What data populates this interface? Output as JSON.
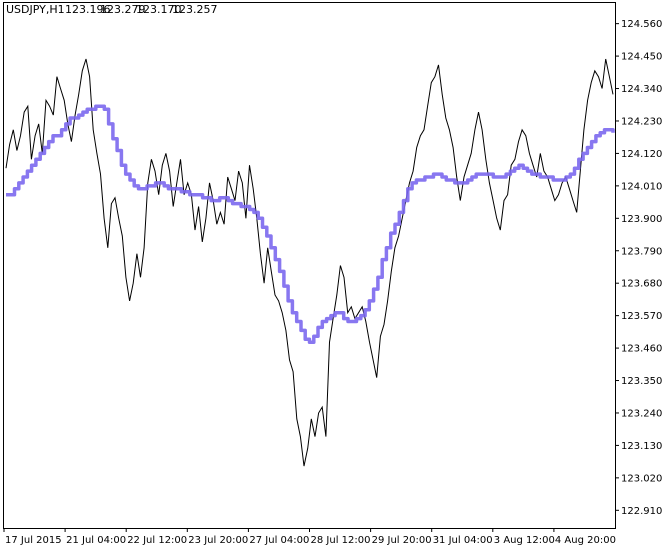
{
  "header": {
    "symbol": "USDJPY,H1",
    "open": "123.196",
    "high": "123.279",
    "low": "123.170",
    "close": "123.257"
  },
  "chart_data": {
    "type": "line",
    "xlabel": "",
    "ylabel": "",
    "ylim": [
      122.85,
      124.63
    ],
    "y_ticks": [
      124.56,
      124.45,
      124.34,
      124.23,
      124.12,
      124.01,
      123.9,
      123.79,
      123.68,
      123.57,
      123.46,
      123.35,
      123.24,
      123.13,
      123.02,
      122.91
    ],
    "y_tick_labels": [
      "124.560",
      "124.450",
      "124.340",
      "124.230",
      "124.120",
      "124.010",
      "123.900",
      "123.790",
      "123.680",
      "123.570",
      "123.460",
      "123.350",
      "123.240",
      "123.130",
      "123.020",
      "122.910"
    ],
    "x_ticks": [
      "17 Jul 2015",
      "21 Jul 04:00",
      "22 Jul 12:00",
      "23 Jul 20:00",
      "27 Jul 04:00",
      "28 Jul 12:00",
      "29 Jul 20:00",
      "31 Jul 04:00",
      "3 Aug 12:00",
      "4 Aug 20:00"
    ],
    "grid": false,
    "series": [
      {
        "values": [
          124.07,
          124.15,
          124.2,
          124.13,
          124.18,
          124.26,
          124.28,
          124.1,
          124.18,
          124.22,
          124.12,
          124.3,
          124.28,
          124.25,
          124.38,
          124.34,
          124.3,
          124.22,
          124.16,
          124.25,
          124.32,
          124.4,
          124.44,
          124.38,
          124.2,
          124.12,
          124.05,
          123.9,
          123.8,
          123.95,
          123.97,
          123.9,
          123.84,
          123.7,
          123.62,
          123.68,
          123.78,
          123.7,
          123.8,
          124.02,
          124.1,
          124.06,
          123.98,
          124.08,
          124.12,
          124.06,
          123.94,
          124.02,
          124.1,
          123.98,
          124.02,
          123.98,
          123.86,
          123.94,
          123.82,
          123.9,
          124.02,
          123.96,
          123.88,
          123.92,
          123.88,
          124.04,
          124.0,
          123.96,
          124.06,
          124.02,
          123.9,
          124.08,
          124.0,
          123.9,
          123.78,
          123.68,
          123.8,
          123.72,
          123.64,
          123.62,
          123.58,
          123.52,
          123.42,
          123.38,
          123.22,
          123.16,
          123.06,
          123.12,
          123.22,
          123.16,
          123.24,
          123.26,
          123.16,
          123.48,
          123.56,
          123.64,
          123.74,
          123.7,
          123.58,
          123.6,
          123.56,
          123.58,
          123.6,
          123.55,
          123.48,
          123.42,
          123.36,
          123.5,
          123.54,
          123.62,
          123.72,
          123.8,
          123.84,
          123.9,
          123.96,
          124.02,
          124.06,
          124.14,
          124.18,
          124.2,
          124.28,
          124.36,
          124.38,
          124.42,
          124.32,
          124.24,
          124.2,
          124.14,
          124.04,
          123.96,
          124.04,
          124.08,
          124.12,
          124.2,
          124.26,
          124.2,
          124.1,
          124.02,
          123.96,
          123.9,
          123.86,
          123.96,
          123.98,
          124.08,
          124.1,
          124.16,
          124.2,
          124.18,
          124.12,
          124.08,
          124.04,
          124.12,
          124.06,
          124.04,
          124.0,
          123.96,
          123.98,
          124.02,
          124.04,
          124.0,
          123.96,
          123.92,
          124.06,
          124.2,
          124.3,
          124.36,
          124.4,
          124.38,
          124.34,
          124.44,
          124.38,
          124.32
        ],
        "color": "#000000"
      },
      {
        "values": [
          123.98,
          123.98,
          124.0,
          124.02,
          124.04,
          124.06,
          124.08,
          124.1,
          124.12,
          124.14,
          124.16,
          124.18,
          124.18,
          124.2,
          124.22,
          124.24,
          124.24,
          124.25,
          124.26,
          124.27,
          124.27,
          124.28,
          124.28,
          124.27,
          124.22,
          124.17,
          124.13,
          124.08,
          124.05,
          124.03,
          124.01,
          124.0,
          124.0,
          124.01,
          124.01,
          124.02,
          124.02,
          124.01,
          124.0,
          124.0,
          124.0,
          123.99,
          123.99,
          123.98,
          123.98,
          123.98,
          123.97,
          123.97,
          123.96,
          123.96,
          123.97,
          123.97,
          123.96,
          123.95,
          123.95,
          123.94,
          123.94,
          123.93,
          123.92,
          123.9,
          123.87,
          123.84,
          123.8,
          123.76,
          123.72,
          123.67,
          123.62,
          123.58,
          123.55,
          123.52,
          123.49,
          123.48,
          123.5,
          123.53,
          123.55,
          123.56,
          123.57,
          123.58,
          123.58,
          123.56,
          123.55,
          123.55,
          123.56,
          123.57,
          123.59,
          123.62,
          123.66,
          123.7,
          123.76,
          123.8,
          123.85,
          123.88,
          123.92,
          123.96,
          124.0,
          124.02,
          124.03,
          124.03,
          124.04,
          124.04,
          124.05,
          124.05,
          124.04,
          124.03,
          124.03,
          124.02,
          124.02,
          124.02,
          124.03,
          124.04,
          124.05,
          124.05,
          124.05,
          124.05,
          124.04,
          124.04,
          124.04,
          124.05,
          124.06,
          124.07,
          124.08,
          124.07,
          124.06,
          124.05,
          124.05,
          124.04,
          124.04,
          124.04,
          124.03,
          124.03,
          124.03,
          124.04,
          124.05,
          124.07,
          124.1,
          124.12,
          124.14,
          124.16,
          124.18,
          124.19,
          124.2,
          124.2,
          124.19
        ],
        "color": "#7b68ee"
      }
    ]
  }
}
